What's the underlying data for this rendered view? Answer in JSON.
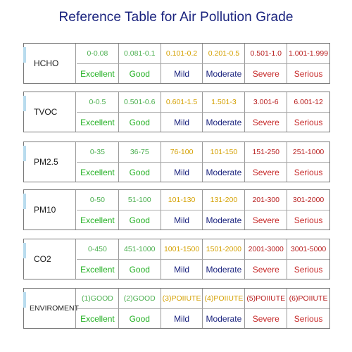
{
  "title": "Reference Table for Air Pollution Grade",
  "colors": {
    "title": "#1a237e",
    "excellent": "#22b022",
    "good": "#22b022",
    "mild_range": "#d4a000",
    "mild": "#1a237e",
    "severe": "#c62828",
    "range_green": "#4caf50",
    "range_red": "#b71c1c"
  },
  "rows": [
    {
      "label": "HCHO",
      "ranges": [
        "0-0.08",
        "0.081-0.1",
        "0.101-0.2",
        "0.201-0.5",
        "0.501-1.0",
        "1.001-1.999"
      ],
      "grades": [
        "Excellent",
        "Good",
        "Mild",
        "Moderate",
        "Severe",
        "Serious"
      ]
    },
    {
      "label": "TVOC",
      "ranges": [
        "0-0.5",
        "0.501-0.6",
        "0.601-1.5",
        "1.501-3",
        "3.001-6",
        "6.001-12"
      ],
      "grades": [
        "Excellent",
        "Good",
        "Mild",
        "Moderate",
        "Severe",
        "Serious"
      ]
    },
    {
      "label": "PM2.5",
      "ranges": [
        "0-35",
        "36-75",
        "76-100",
        "101-150",
        "151-250",
        "251-1000"
      ],
      "grades": [
        "Excellent",
        "Good",
        "Mild",
        "Moderate",
        "Severe",
        "Serious"
      ]
    },
    {
      "label": "PM10",
      "ranges": [
        "0-50",
        "51-100",
        "101-130",
        "131-200",
        "201-300",
        "301-2000"
      ],
      "grades": [
        "Excellent",
        "Good",
        "Mild",
        "Moderate",
        "Severe",
        "Serious"
      ]
    },
    {
      "label": "CO2",
      "ranges": [
        "0-450",
        "451-1000",
        "1001-1500",
        "1501-2000",
        "2001-3000",
        "3001-5000"
      ],
      "grades": [
        "Excellent",
        "Good",
        "Mild",
        "Moderate",
        "Severe",
        "Serious"
      ]
    },
    {
      "label": "ENVIROMENT",
      "ranges": [
        "(1)GOOD",
        "(2)GOOD",
        "(3)POIIUTE",
        "(4)POIIUTE",
        "(5)POIIUTE",
        "(6)POIIUTE"
      ],
      "grades": [
        "Excellent",
        "Good",
        "Mild",
        "Moderate",
        "Severe",
        "Serious"
      ]
    }
  ]
}
